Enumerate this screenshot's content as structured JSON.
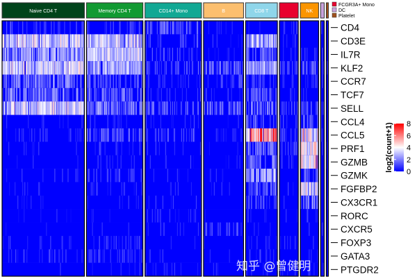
{
  "chart_data": {
    "type": "heatmap",
    "title": "",
    "legend": {
      "title": "log2(count+1)",
      "ticks": [
        0,
        2,
        4,
        6,
        8
      ],
      "range": [
        0,
        8
      ],
      "colors": [
        "#0000ff",
        "#ffffff",
        "#ff0000"
      ],
      "placement": "right"
    },
    "groups": [
      {
        "name": "Naive CD4 T",
        "color": "#00441b",
        "text_color": "#ffffff",
        "cells": 700
      },
      {
        "name": "Memory CD4 T",
        "color": "#119a32",
        "text_color": "#ffffff",
        "cells": 480
      },
      {
        "name": "CD14+ Mono",
        "color": "#11a894",
        "text_color": "#ffffff",
        "cells": 480
      },
      {
        "name": "B",
        "color": "#fcbf6e",
        "text_color": "#ffffff",
        "cells": 340
      },
      {
        "name": "CD8 T",
        "color": "#8fd6ea",
        "text_color": "#ffffff",
        "cells": 270
      },
      {
        "name": "FCGR3A+ Mono",
        "color": "#e8002e",
        "text_color": "#ffffff",
        "cells": 160
      },
      {
        "name": "NK",
        "color": "#fb9500",
        "text_color": "#ffffff",
        "cells": 155
      },
      {
        "name": "DC",
        "color": "#c9a2dc",
        "text_color": "#ffffff",
        "cells": 30
      },
      {
        "name": "Platelet",
        "color": "#a0521e",
        "text_color": "#ffffff",
        "cells": 15
      }
    ],
    "genes": [
      "CD4",
      "CD3E",
      "IL7R",
      "KLF2",
      "CCR7",
      "TCF7",
      "SELL",
      "CCL4",
      "CCL5",
      "PRF1",
      "GZMB",
      "GZMK",
      "FGFBP2",
      "CX3CR1",
      "RORC",
      "CXCR5",
      "FOXP3",
      "GATA3",
      "PTGDR2"
    ],
    "mean_expression": [
      [
        0.6,
        0.5,
        1.0,
        0.1,
        0.2,
        0.5,
        0.1,
        0.8,
        0.1
      ],
      [
        2.6,
        2.6,
        0.6,
        0.2,
        2.2,
        0.3,
        0.6,
        0.5,
        0.2
      ],
      [
        2.0,
        2.4,
        0.6,
        0.3,
        1.0,
        0.3,
        0.5,
        0.5,
        0.2
      ],
      [
        2.6,
        2.2,
        0.7,
        1.2,
        2.2,
        0.8,
        1.2,
        0.6,
        0.3
      ],
      [
        1.4,
        1.0,
        0.4,
        0.6,
        0.6,
        0.2,
        0.3,
        0.4,
        0.1
      ],
      [
        1.4,
        1.1,
        0.4,
        0.4,
        1.2,
        0.2,
        0.4,
        0.4,
        0.1
      ],
      [
        2.6,
        1.6,
        0.8,
        1.1,
        1.4,
        0.6,
        1.0,
        0.7,
        0.2
      ],
      [
        0.2,
        0.3,
        0.4,
        0.1,
        1.2,
        0.6,
        1.2,
        0.3,
        0.2
      ],
      [
        0.3,
        1.0,
        0.6,
        0.2,
        5.0,
        0.5,
        3.2,
        0.4,
        0.3
      ],
      [
        0.2,
        0.4,
        0.3,
        0.1,
        1.4,
        0.6,
        3.0,
        0.3,
        0.2
      ],
      [
        0.1,
        0.3,
        0.2,
        0.1,
        1.2,
        0.5,
        3.6,
        0.4,
        0.3
      ],
      [
        0.2,
        0.6,
        0.2,
        0.1,
        2.0,
        0.2,
        1.2,
        0.2,
        0.1
      ],
      [
        0.1,
        0.2,
        0.2,
        0.1,
        1.0,
        0.3,
        3.0,
        0.2,
        0.1
      ],
      [
        0.1,
        0.2,
        0.2,
        0.1,
        0.8,
        0.4,
        1.6,
        0.2,
        0.1
      ],
      [
        0.1,
        0.2,
        0.2,
        0.1,
        0.3,
        0.2,
        0.3,
        0.2,
        0.1
      ],
      [
        0.1,
        0.2,
        0.2,
        0.6,
        0.2,
        0.2,
        0.2,
        0.2,
        0.1
      ],
      [
        0.2,
        0.4,
        0.2,
        0.1,
        0.2,
        0.2,
        0.2,
        0.2,
        0.1
      ],
      [
        0.4,
        0.5,
        0.2,
        0.1,
        0.5,
        0.2,
        0.3,
        0.2,
        0.1
      ],
      [
        0.1,
        0.2,
        0.2,
        0.1,
        0.2,
        0.2,
        0.2,
        0.2,
        0.1
      ]
    ]
  },
  "watermark": "知乎 @曾健明"
}
